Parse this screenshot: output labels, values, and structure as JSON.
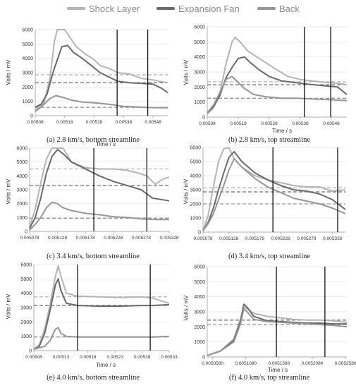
{
  "legend": {
    "items": [
      {
        "label": "Shock Layer",
        "color": "#b4b4b4"
      },
      {
        "label": "Expansion Fan",
        "color": "#6a6a6a"
      },
      {
        "label": "Back",
        "color": "#969696"
      }
    ]
  },
  "chart_data": [
    {
      "type": "line",
      "caption": "(a)  2.8 km/s, bottom streamline",
      "xlabel": "Time / s",
      "ylabel": "Volts / mV",
      "xlim": [
        0.00508,
        0.00553
      ],
      "ylim": [
        0,
        6000
      ],
      "xticks": [
        "0.00508",
        "0.00518",
        "0.00528",
        "0.00538",
        "0.00548"
      ],
      "yticks": [
        "0",
        "1000",
        "2000",
        "3000",
        "4000",
        "5000",
        "6000"
      ],
      "vlines": [
        0.005358,
        0.005462
      ],
      "hlines": [
        {
          "series": "Shock Layer",
          "value": 2850
        },
        {
          "series": "Expansion Fan",
          "value": 2300
        },
        {
          "series": "Back",
          "value": 580
        }
      ],
      "series": [
        {
          "name": "Shock Layer",
          "color": "#b4b4b4",
          "x": [
            0.00508,
            0.00511,
            0.00513,
            0.005145,
            0.005155,
            0.00516,
            0.00518,
            0.0052,
            0.00522,
            0.00525,
            0.00528,
            0.0053,
            0.00533,
            0.00536,
            0.0054,
            0.00544,
            0.00548,
            0.0055,
            0.00553
          ],
          "y": [
            400,
            900,
            2600,
            5200,
            6000,
            6000,
            6000,
            5400,
            4800,
            4300,
            3900,
            3500,
            3300,
            3000,
            2900,
            2600,
            2500,
            2400,
            2300
          ]
        },
        {
          "name": "Expansion Fan",
          "color": "#6a6a6a",
          "x": [
            0.00508,
            0.0051,
            0.00512,
            0.00514,
            0.00516,
            0.00517,
            0.00519,
            0.00521,
            0.00524,
            0.00527,
            0.0053,
            0.00533,
            0.00536,
            0.0054,
            0.00544,
            0.00548,
            0.00551,
            0.00553
          ],
          "y": [
            600,
            800,
            1500,
            3000,
            4200,
            4800,
            4900,
            4400,
            4000,
            3500,
            3000,
            2700,
            2400,
            2300,
            2250,
            2200,
            1900,
            1600
          ]
        },
        {
          "name": "Back",
          "color": "#969696",
          "x": [
            0.00508,
            0.0051,
            0.00513,
            0.00515,
            0.00517,
            0.0052,
            0.00524,
            0.00528,
            0.00533,
            0.00538,
            0.00543,
            0.00548,
            0.00553
          ],
          "y": [
            300,
            600,
            1200,
            1400,
            1300,
            1100,
            950,
            900,
            800,
            650,
            600,
            560,
            550
          ]
        }
      ]
    },
    {
      "type": "line",
      "caption": "(b)  2.8 km/s, top streamline",
      "xlabel": "Time / s",
      "ylabel": "Volts / mV",
      "xlim": [
        0.00508,
        0.00553
      ],
      "ylim": [
        0,
        6000
      ],
      "xticks": [
        "0.00508",
        "0.00518",
        "0.00528",
        "0.00538",
        "0.00548"
      ],
      "yticks": [
        "0",
        "1000",
        "2000",
        "3000",
        "4000",
        "5000",
        "6000"
      ],
      "vlines": [
        0.005393,
        0.005478
      ],
      "hlines": [
        {
          "series": "Shock Layer",
          "value": 2350
        },
        {
          "series": "Expansion Fan",
          "value": 2150
        },
        {
          "series": "Back",
          "value": 1250
        }
      ],
      "series": [
        {
          "name": "Shock Layer",
          "color": "#b4b4b4",
          "x": [
            0.00508,
            0.0051,
            0.00512,
            0.00514,
            0.00516,
            0.00517,
            0.00519,
            0.00521,
            0.00524,
            0.00527,
            0.0053,
            0.00534,
            0.00538,
            0.00542,
            0.00546,
            0.0055,
            0.00553
          ],
          "y": [
            200,
            600,
            1500,
            3500,
            5000,
            5300,
            4900,
            4400,
            4000,
            3600,
            3200,
            2700,
            2500,
            2400,
            2300,
            2250,
            2150
          ]
        },
        {
          "name": "Expansion Fan",
          "color": "#6a6a6a",
          "x": [
            0.00508,
            0.0051,
            0.00512,
            0.00514,
            0.00516,
            0.00518,
            0.0052,
            0.00522,
            0.00525,
            0.00528,
            0.00532,
            0.00536,
            0.0054,
            0.00545,
            0.0055,
            0.00553
          ],
          "y": [
            300,
            700,
            1400,
            2600,
            3300,
            3900,
            4000,
            3600,
            3100,
            2700,
            2400,
            2300,
            2200,
            2100,
            2000,
            1500
          ]
        },
        {
          "name": "Back",
          "color": "#969696",
          "x": [
            0.00508,
            0.0051,
            0.00512,
            0.00514,
            0.00516,
            0.00518,
            0.0052,
            0.00523,
            0.00527,
            0.00532,
            0.00537,
            0.00542,
            0.00548,
            0.00553
          ],
          "y": [
            300,
            800,
            1600,
            2500,
            2700,
            2300,
            1900,
            1500,
            1350,
            1250,
            1250,
            1200,
            1150,
            1100
          ]
        }
      ]
    },
    {
      "type": "line",
      "caption": "(c)  3.4 km/s, bottom streamline",
      "xlabel": "Time / s",
      "ylabel": "Volts / mV",
      "xlim": [
        0.005078,
        0.005328
      ],
      "ylim": [
        0,
        6000
      ],
      "xticks": [
        "0.005078",
        "0.005128",
        "0.005178",
        "0.005228",
        "0.005278",
        "0.005328"
      ],
      "yticks": [
        "0",
        "1000",
        "2000",
        "3000",
        "4000",
        "5000",
        "6000"
      ],
      "vlines": [
        0.005193,
        0.005288
      ],
      "hlines": [
        {
          "series": "Shock Layer",
          "value": 4500
        },
        {
          "series": "Expansion Fan",
          "value": 3300
        },
        {
          "series": "Back",
          "value": 950
        }
      ],
      "series": [
        {
          "name": "Shock Layer",
          "color": "#b4b4b4",
          "x": [
            0.005078,
            0.005088,
            0.005098,
            0.005108,
            0.005118,
            0.005128,
            0.005138,
            0.005153,
            0.005178,
            0.005203,
            0.005228,
            0.005253,
            0.005273,
            0.005288,
            0.005303,
            0.005318,
            0.005328
          ],
          "y": [
            300,
            1600,
            3500,
            5200,
            6000,
            6000,
            6000,
            5000,
            4600,
            4500,
            4500,
            4400,
            4200,
            4000,
            3400,
            3800,
            3900
          ]
        },
        {
          "name": "Expansion Fan",
          "color": "#6a6a6a",
          "x": [
            0.005078,
            0.005088,
            0.005098,
            0.005108,
            0.005118,
            0.005128,
            0.005138,
            0.005153,
            0.005178,
            0.005203,
            0.005228,
            0.005253,
            0.005278,
            0.005298,
            0.005328
          ],
          "y": [
            200,
            1000,
            2400,
            4200,
            5400,
            5900,
            5600,
            5000,
            4500,
            4000,
            3600,
            3300,
            3000,
            2400,
            2200
          ]
        },
        {
          "name": "Back",
          "color": "#969696",
          "x": [
            0.005078,
            0.005088,
            0.005098,
            0.005108,
            0.005118,
            0.005128,
            0.005138,
            0.005153,
            0.005178,
            0.005203,
            0.005228,
            0.005253,
            0.005278,
            0.005303,
            0.005328
          ],
          "y": [
            100,
            500,
            1000,
            1700,
            2100,
            2000,
            1700,
            1500,
            1300,
            1200,
            1050,
            1000,
            900,
            850,
            850
          ]
        }
      ]
    },
    {
      "type": "line",
      "caption": "(d)  3.4 km/s, top streamline",
      "xlabel": "Time / s",
      "ylabel": "Volts / mV",
      "xlim": [
        0.005078,
        0.005353
      ],
      "ylim": [
        0,
        6000
      ],
      "xticks": [
        "0.005078",
        "0.005128",
        "0.005178",
        "0.005228",
        "0.005278",
        "0.005328"
      ],
      "yticks": [
        "0",
        "1000",
        "2000",
        "3000",
        "4000",
        "5000",
        "6000"
      ],
      "vlines": [
        0.005213,
        0.005338
      ],
      "hlines": [
        {
          "series": "Shock Layer",
          "value": 3150
        },
        {
          "series": "Expansion Fan",
          "value": 2850
        },
        {
          "series": "Back",
          "value": 2000
        }
      ],
      "series": [
        {
          "name": "Shock Layer",
          "color": "#b4b4b4",
          "x": [
            0.005078,
            0.005088,
            0.005098,
            0.005108,
            0.005118,
            0.005128,
            0.005138,
            0.005153,
            0.005178,
            0.005203,
            0.005228,
            0.005253,
            0.005278,
            0.005303,
            0.005328,
            0.005353
          ],
          "y": [
            100,
            1200,
            3200,
            5000,
            5900,
            6000,
            5200,
            4600,
            4000,
            3700,
            3500,
            3300,
            3200,
            3200,
            2900,
            3000
          ]
        },
        {
          "name": "Expansion Fan",
          "color": "#6a6a6a",
          "x": [
            0.005078,
            0.005088,
            0.005098,
            0.005108,
            0.005118,
            0.005128,
            0.005138,
            0.005153,
            0.005178,
            0.005203,
            0.005228,
            0.005253,
            0.005278,
            0.005303,
            0.005328,
            0.005353
          ],
          "y": [
            100,
            700,
            1700,
            3000,
            4200,
            5300,
            5700,
            5000,
            4200,
            3700,
            3300,
            3000,
            2900,
            2700,
            2300,
            1600
          ]
        },
        {
          "name": "Back",
          "color": "#969696",
          "x": [
            0.005078,
            0.005088,
            0.005098,
            0.005108,
            0.005118,
            0.005128,
            0.005138,
            0.005153,
            0.005178,
            0.005203,
            0.005228,
            0.005253,
            0.005278,
            0.005303,
            0.005328,
            0.005353
          ],
          "y": [
            100,
            600,
            1300,
            2300,
            3300,
            4400,
            5200,
            4600,
            3800,
            3200,
            2800,
            2400,
            2200,
            2000,
            1700,
            1300
          ]
        }
      ]
    },
    {
      "type": "line",
      "caption": "(e)  4.0 km/s, bottom streamline",
      "xlabel": "Time / s",
      "ylabel": "Volts / mV",
      "xlim": [
        0.00508,
        0.00533
      ],
      "ylim": [
        0,
        6000
      ],
      "xticks": [
        "0.00508",
        "0.00513",
        "0.00518",
        "0.00523",
        "0.00528",
        "0.00533"
      ],
      "yticks": [
        "0",
        "1000",
        "2000",
        "3000",
        "4000",
        "5000",
        "6000"
      ],
      "vlines": [
        0.005161,
        0.005295
      ],
      "hlines": [
        {
          "series": "Shock Layer",
          "value": 3750
        },
        {
          "series": "Expansion Fan",
          "value": 3150
        },
        {
          "series": "Back",
          "value": 950
        }
      ],
      "series": [
        {
          "name": "Shock Layer",
          "color": "#b4b4b4",
          "x": [
            0.00508,
            0.00509,
            0.0051,
            0.00511,
            0.00512,
            0.005125,
            0.00513,
            0.00514,
            0.00516,
            0.0052,
            0.00524,
            0.00528,
            0.0053,
            0.00533
          ],
          "y": [
            100,
            400,
            1500,
            3200,
            5200,
            5900,
            5200,
            4000,
            3800,
            3750,
            3700,
            3750,
            3650,
            3300
          ]
        },
        {
          "name": "Expansion Fan",
          "color": "#6a6a6a",
          "x": [
            0.00508,
            0.00509,
            0.0051,
            0.00511,
            0.00512,
            0.005125,
            0.00513,
            0.00514,
            0.00516,
            0.0052,
            0.00524,
            0.00528,
            0.0053,
            0.00533
          ],
          "y": [
            100,
            300,
            1200,
            2800,
            4600,
            5000,
            4200,
            3300,
            3150,
            3100,
            3100,
            3150,
            3150,
            3200
          ]
        },
        {
          "name": "Back",
          "color": "#969696",
          "x": [
            0.00508,
            0.0051,
            0.00511,
            0.00512,
            0.005125,
            0.00513,
            0.00514,
            0.00516,
            0.0052,
            0.00524,
            0.00528,
            0.0053,
            0.00533
          ],
          "y": [
            100,
            300,
            700,
            1500,
            1600,
            1200,
            1000,
            950,
            950,
            950,
            950,
            950,
            1000
          ]
        }
      ]
    },
    {
      "type": "line",
      "caption": "(f)  4.0 km/s, top streamline",
      "xlabel": "Time / s",
      "ylabel": "Volts / mV",
      "xlim": [
        0.00505,
        0.00526
      ],
      "ylim": [
        0,
        6000
      ],
      "xticks": [
        "0.0050580",
        "0.0051080",
        "0.0051580",
        "0.0052080",
        "0.0052580"
      ],
      "yticks": [
        "0",
        "1000",
        "2000",
        "3000",
        "4000",
        "5000",
        "6000"
      ],
      "vlines": [
        0.005154,
        0.005227
      ],
      "hlines": [
        {
          "series": "Shock Layer",
          "value": 2450
        },
        {
          "series": "Expansion Fan",
          "value": 2450
        },
        {
          "series": "Back",
          "value": 2150
        }
      ],
      "series": [
        {
          "name": "Shock Layer",
          "color": "#b4b4b4",
          "x": [
            0.00505,
            0.00507,
            0.00509,
            0.0051,
            0.005105,
            0.00511,
            0.00512,
            0.00514,
            0.00516,
            0.00518,
            0.0052,
            0.00522,
            0.00524,
            0.00526
          ],
          "y": [
            100,
            400,
            1200,
            2500,
            3300,
            3200,
            2900,
            2700,
            2600,
            2500,
            2450,
            2450,
            2400,
            2300
          ]
        },
        {
          "name": "Expansion Fan",
          "color": "#6a6a6a",
          "x": [
            0.00505,
            0.00507,
            0.00509,
            0.0051,
            0.005105,
            0.00511,
            0.00512,
            0.00514,
            0.00516,
            0.00518,
            0.0052,
            0.00522,
            0.00524,
            0.00526
          ],
          "y": [
            100,
            400,
            1100,
            2400,
            3500,
            3300,
            2700,
            2400,
            2350,
            2300,
            2250,
            2250,
            2200,
            2200
          ]
        },
        {
          "name": "Back",
          "color": "#969696",
          "x": [
            0.00505,
            0.00507,
            0.00509,
            0.0051,
            0.005105,
            0.00511,
            0.00512,
            0.00514,
            0.00516,
            0.00518,
            0.0052,
            0.00522,
            0.00524,
            0.00526
          ],
          "y": [
            100,
            400,
            1000,
            2200,
            3200,
            3000,
            2500,
            2350,
            2300,
            2250,
            2200,
            2150,
            2100,
            2000
          ]
        }
      ]
    }
  ]
}
